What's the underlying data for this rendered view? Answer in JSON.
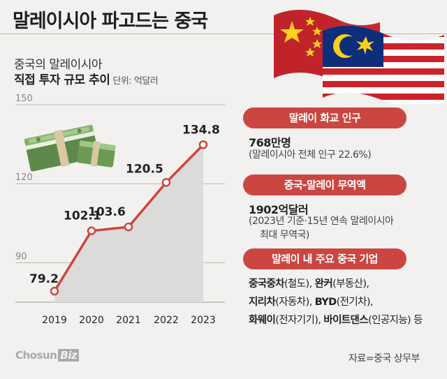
{
  "header": {
    "title": "말레이시아 파고드는 중국"
  },
  "subtitle": {
    "line1": "중국의 말레이시아",
    "line2": "직접 투자 규모 추이",
    "unit": "단위: 억달러"
  },
  "chart_data": {
    "type": "area",
    "categories": [
      "2019",
      "2020",
      "2021",
      "2022",
      "2023"
    ],
    "values": [
      79.2,
      102.1,
      103.6,
      120.5,
      134.8
    ],
    "data_labels": [
      "79.2",
      "102.1",
      "103.6",
      "120.5",
      "134.8"
    ],
    "yticks": [
      90,
      120,
      150
    ],
    "ytick_labels": [
      "90",
      "120",
      "150"
    ],
    "ylim": [
      75,
      150
    ],
    "grid": true,
    "line_color": "#cc4641",
    "fill_color": "#dcdbd9"
  },
  "panels": {
    "population": {
      "header": "말레이 화교 인구",
      "value": "768만명",
      "note": "(말레이시아 전체 인구 22.6%)"
    },
    "trade": {
      "header": "중국-말레이 무역액",
      "value": "1902억달러",
      "note_line1": "(2023년 기준·15년 연속 말레이시아",
      "note_line2": "최대 무역국)"
    },
    "companies": {
      "header": "말레이 내 주요 중국 기업",
      "rows": [
        [
          {
            "name": "중국중차",
            "desc": "(철도), "
          },
          {
            "name": "완커",
            "desc": "(부동산),"
          }
        ],
        [
          {
            "name": "지리차",
            "desc": "(자동차), "
          },
          {
            "name": "BYD",
            "desc": "(전기차),"
          }
        ],
        [
          {
            "name": "화웨이",
            "desc": "(전자기기), "
          },
          {
            "name": "바이트댄스",
            "desc": "(인공지능) 등"
          }
        ]
      ]
    }
  },
  "footer": {
    "logo_main": "Chosun",
    "logo_tag": "Biz",
    "source": "자료=중국 상무부"
  },
  "colors": {
    "accent": "#cc4641",
    "background": "#f2f1ef"
  }
}
